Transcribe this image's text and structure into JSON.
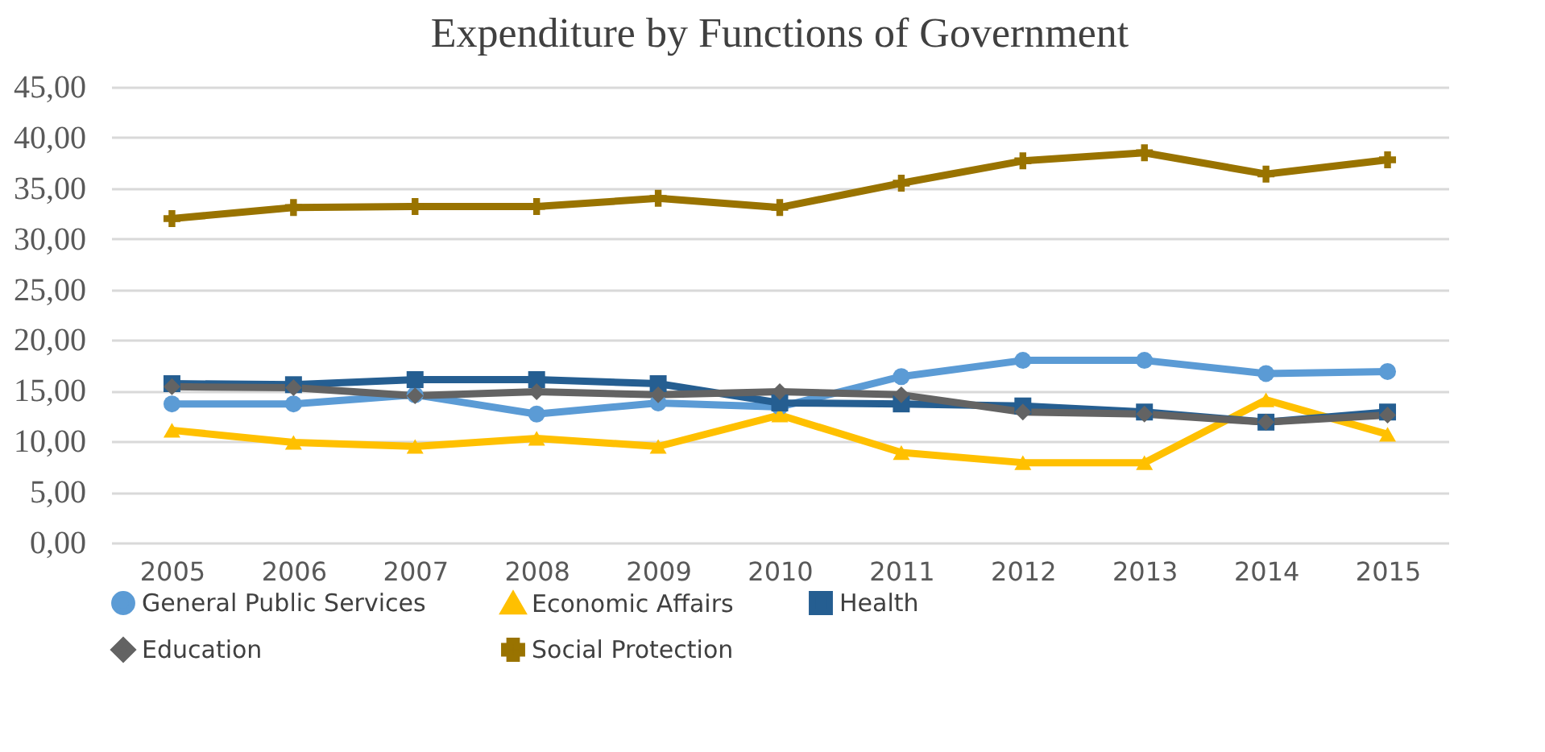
{
  "chart_data": {
    "type": "line",
    "title": "Expenditure by Functions of Government",
    "categories": [
      "2005",
      "2006",
      "2007",
      "2008",
      "2009",
      "2010",
      "2011",
      "2012",
      "2013",
      "2014",
      "2015"
    ],
    "series": [
      {
        "name": "General Public Services",
        "color": "#5b9bd5",
        "marker": "circle",
        "values": [
          13.7,
          13.7,
          14.6,
          12.7,
          13.8,
          13.4,
          16.4,
          18.0,
          18.0,
          16.7,
          16.9
        ]
      },
      {
        "name": "Economic Affairs",
        "color": "#ffc000",
        "marker": "triangle",
        "values": [
          11.1,
          9.9,
          9.5,
          10.3,
          9.5,
          12.6,
          8.9,
          7.9,
          7.9,
          14.1,
          10.7
        ]
      },
      {
        "name": "Health",
        "color": "#255e91",
        "marker": "square",
        "values": [
          15.7,
          15.6,
          16.1,
          16.1,
          15.7,
          13.8,
          13.7,
          13.5,
          12.9,
          11.9,
          12.9
        ]
      },
      {
        "name": "Education",
        "color": "#636363",
        "marker": "diamond",
        "values": [
          15.4,
          15.3,
          14.5,
          14.9,
          14.6,
          14.9,
          14.6,
          12.9,
          12.7,
          11.9,
          12.6
        ]
      },
      {
        "name": "Social Protection",
        "color": "#997300",
        "marker": "cross",
        "values": [
          32.0,
          33.1,
          33.2,
          33.2,
          34.0,
          33.1,
          35.5,
          37.7,
          38.5,
          36.4,
          37.8
        ]
      }
    ],
    "ylim": [
      0,
      45
    ],
    "yticks": [
      {
        "value": 0,
        "label": "0,00"
      },
      {
        "value": 5,
        "label": "5,00"
      },
      {
        "value": 10,
        "label": "10,00"
      },
      {
        "value": 15,
        "label": "15,00"
      },
      {
        "value": 20,
        "label": "20,00"
      },
      {
        "value": 25,
        "label": "25,00"
      },
      {
        "value": 30,
        "label": "30,00"
      },
      {
        "value": 35,
        "label": "35,00"
      },
      {
        "value": 40,
        "label": "40,00"
      },
      {
        "value": 45,
        "label": "45,00"
      }
    ],
    "grid": "y",
    "legend": "bottom",
    "line_style": "solid"
  }
}
